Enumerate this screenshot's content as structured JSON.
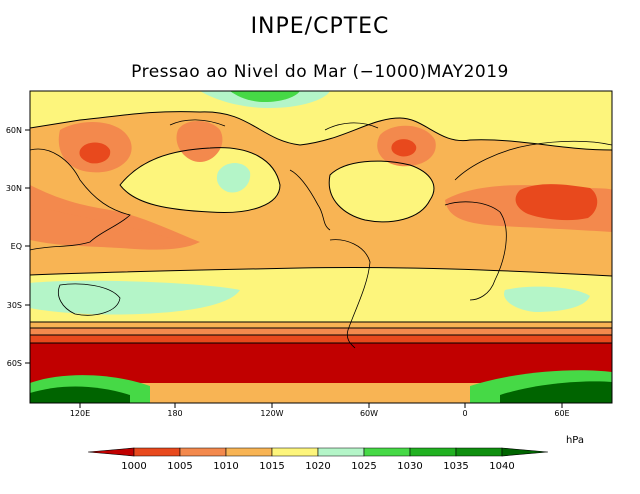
{
  "header": {
    "title": "INPE/CPTEC",
    "subtitle": "Pressao ao Nivel do Mar (−1000)MAY2019"
  },
  "map": {
    "lat_labels": [
      "60N",
      "30N",
      "EQ",
      "30S",
      "60S"
    ],
    "lon_labels": [
      "120E",
      "180",
      "120W",
      "60W",
      "0",
      "60E"
    ],
    "colors": {
      "lt_1000": "#c10000",
      "r1000_1005": "#e8491d",
      "r1005_1010": "#f3894d",
      "r1010_1015": "#f8b454",
      "r1015_1020": "#fdf57c",
      "r1020_1025": "#b4f5c8",
      "r1025_1030": "#46d946",
      "r1030_1035": "#21b121",
      "r1035_1040": "#0f8f0f",
      "gt_1040": "#006400",
      "contour": "#000000",
      "land": "#000000"
    }
  },
  "legend": {
    "unit": "hPa",
    "levels": [
      "1000",
      "1005",
      "1010",
      "1015",
      "1020",
      "1025",
      "1030",
      "1035",
      "1040"
    ]
  }
}
